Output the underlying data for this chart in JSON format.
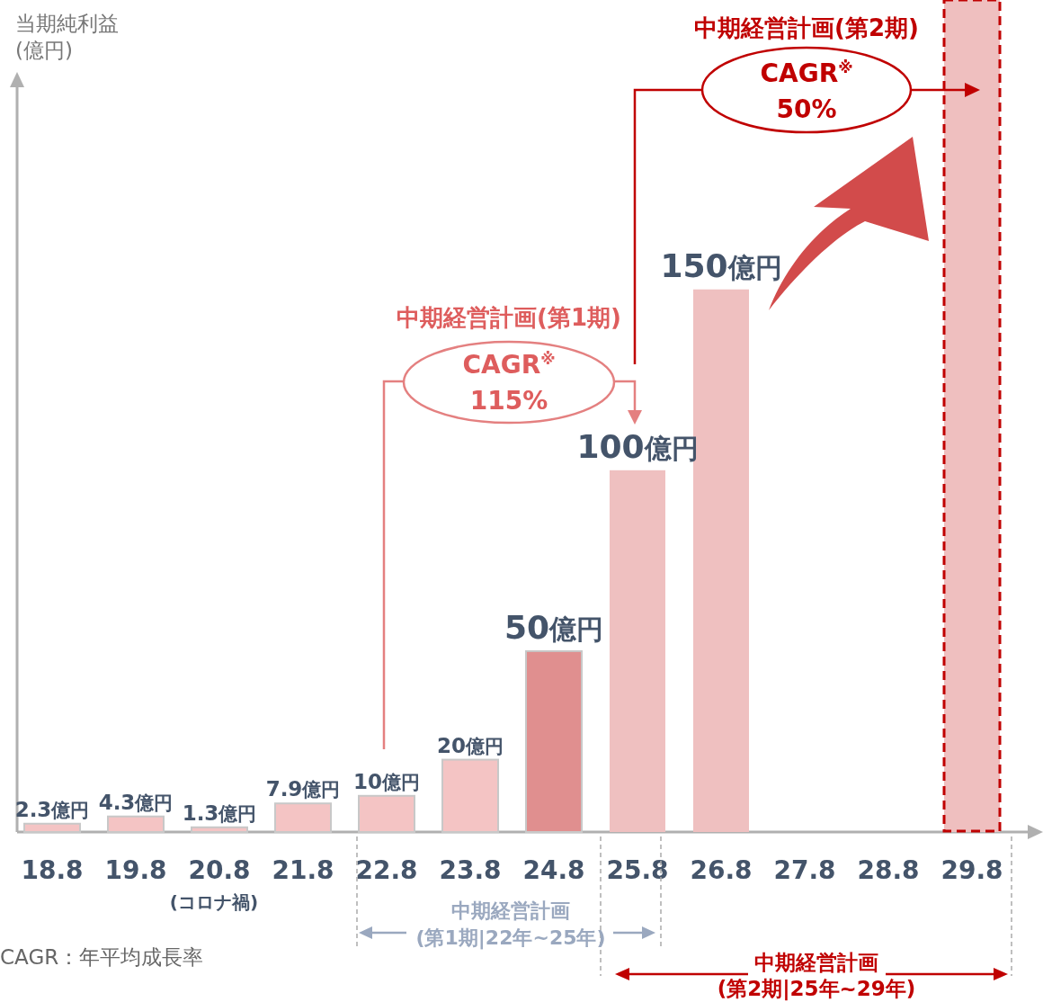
{
  "chart_data": {
    "type": "bar",
    "ylabel": "当期純利益\n(億円)",
    "categories": [
      "18.8",
      "19.8",
      "20.8",
      "21.8",
      "22.8",
      "23.8",
      "24.8",
      "25.8",
      "26.8",
      "27.8",
      "28.8",
      "29.8"
    ],
    "values": [
      2.3,
      4.3,
      1.3,
      7.9,
      10,
      20,
      50,
      100,
      150,
      null,
      null,
      230
    ],
    "colors": [
      "#f4c4c4",
      "#f4c4c4",
      "#f4c4c4",
      "#f4c4c4",
      "#f4c4c4",
      "#f4c4c4",
      "#e08f8f",
      "#efc0c0",
      "#efc0c0",
      null,
      null,
      "#efbfbf"
    ],
    "value_labels": [
      "2.3億円",
      "4.3億円",
      "1.3億円",
      "7.9億円",
      "10億円",
      "20億円",
      "50億円",
      "100億円",
      "150億円",
      null,
      null,
      null
    ],
    "ylim": [
      0,
      230
    ],
    "annotations": [
      "中期経営計画(第2期)",
      "CAGR$^{※}$\n50%",
      "中期経営計画(第1期)",
      "CAGR$^{※}$\n115%",
      "(コロナ禍)",
      "中期経営計画\n(第1期|22年~25年)",
      "中期経営計画\n(第2期|25年~29年)",
      "CAGR：年平均成長率"
    ]
  }
}
